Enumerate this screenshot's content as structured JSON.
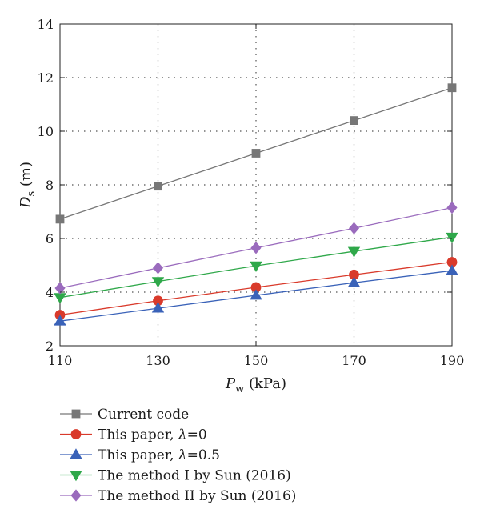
{
  "chart_data": {
    "type": "line",
    "x": [
      110,
      130,
      150,
      170,
      190
    ],
    "xlabel": {
      "main": "P",
      "sub": "w",
      "unit": " (kPa)"
    },
    "ylabel": {
      "main": "D",
      "sub": "s",
      "unit": " (m)"
    },
    "xlim": [
      110,
      190
    ],
    "ylim": [
      2,
      14
    ],
    "xticks": [
      "110",
      "130",
      "150",
      "170",
      "190"
    ],
    "yticks": [
      "2",
      "4",
      "6",
      "8",
      "10",
      "12",
      "14"
    ],
    "grid": true,
    "legend_position": "below",
    "series": [
      {
        "name": "Current code",
        "marker": "square",
        "color": "#777777",
        "values": [
          6.72,
          7.95,
          9.18,
          10.4,
          11.62
        ]
      },
      {
        "name": "This paper, λ=0",
        "name_parts": [
          "This paper, ",
          "λ",
          "=0"
        ],
        "marker": "circle",
        "color": "#d93a2b",
        "values": [
          3.15,
          3.68,
          4.18,
          4.65,
          5.12
        ]
      },
      {
        "name": "This paper, λ=0.5",
        "name_parts": [
          "This paper, ",
          "λ",
          "=0.5"
        ],
        "marker": "triangle-up",
        "color": "#3a62b8",
        "values": [
          2.92,
          3.4,
          3.88,
          4.35,
          4.8
        ]
      },
      {
        "name": "The method I by Sun (2016)",
        "marker": "triangle-down",
        "color": "#2fa84a",
        "values": [
          3.8,
          4.4,
          4.98,
          5.52,
          6.05
        ]
      },
      {
        "name": "The method II by Sun (2016)",
        "marker": "diamond",
        "color": "#9a6bbd",
        "values": [
          4.15,
          4.9,
          5.65,
          6.38,
          7.15
        ]
      }
    ]
  }
}
